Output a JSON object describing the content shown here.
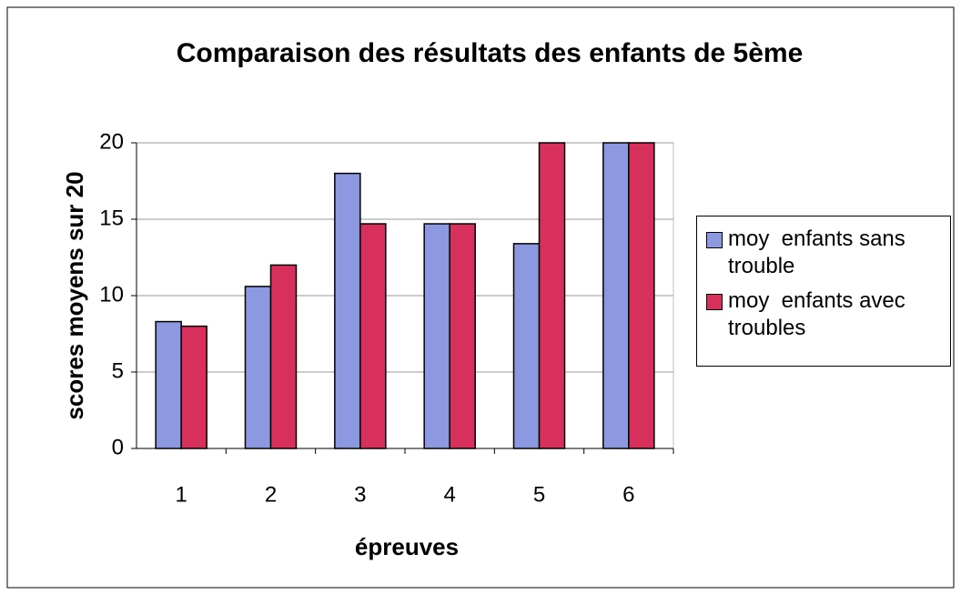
{
  "chart_data": {
    "type": "bar",
    "title": "Comparaison des résultats des enfants de 5ème",
    "xlabel": "épreuves",
    "ylabel": "scores moyens sur 20",
    "categories": [
      "1",
      "2",
      "3",
      "4",
      "5",
      "6"
    ],
    "series": [
      {
        "name": "moy  enfants sans trouble",
        "color": "#8c98e0",
        "values": [
          8.3,
          10.6,
          18,
          14.7,
          13.4,
          20
        ]
      },
      {
        "name": "moy  enfants avec troubles",
        "color": "#d8305c",
        "values": [
          8,
          12,
          14.7,
          14.7,
          20,
          20
        ]
      }
    ],
    "ylim": [
      0,
      20
    ],
    "yticks": [
      0,
      5,
      10,
      15,
      20
    ],
    "grid": true,
    "legend": "right"
  }
}
